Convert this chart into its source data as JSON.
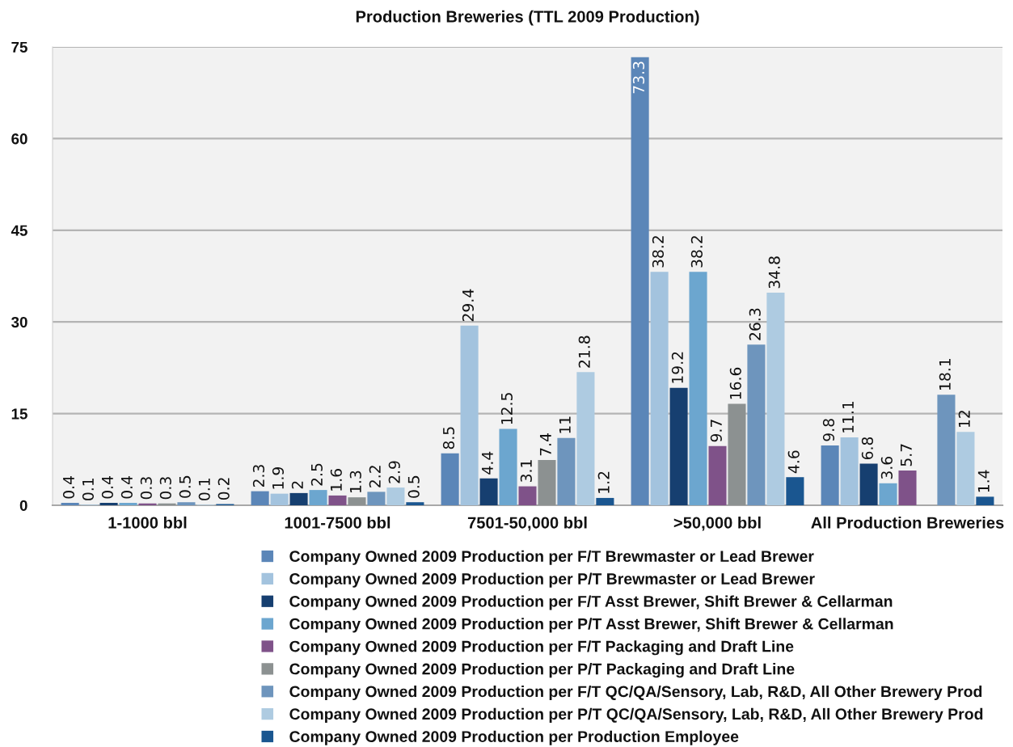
{
  "chart_data": {
    "type": "bar",
    "title": "Production Breweries (TTL 2009 Production)",
    "categories": [
      "1-1000 bbl",
      "1001-7500 bbl",
      "7501-50,000 bbl",
      ">50,000 bbl",
      "All Production Breweries"
    ],
    "series": [
      {
        "name": "Company Owned 2009 Production per F/T Brewmaster or Lead Brewer",
        "color": "#5b86b8",
        "values": [
          0.4,
          2.3,
          8.5,
          73.3,
          9.8
        ]
      },
      {
        "name": "Company Owned 2009 Production per P/T Brewmaster or Lead Brewer",
        "color": "#a3c3de",
        "values": [
          0.1,
          1.9,
          29.4,
          38.2,
          11.1
        ]
      },
      {
        "name": "Company Owned 2009 Production per F/T Asst Brewer, Shift Brewer & Cellarman",
        "color": "#163f70",
        "values": [
          0.4,
          2,
          4.4,
          19.2,
          6.8
        ]
      },
      {
        "name": "Company Owned 2009 Production per P/T Asst Brewer, Shift Brewer & Cellarman",
        "color": "#6ca6cf",
        "values": [
          0.4,
          2.5,
          12.5,
          38.2,
          3.6
        ]
      },
      {
        "name": "Company Owned 2009 Production per F/T Packaging and Draft Line",
        "color": "#7f5289",
        "values": [
          0.3,
          1.6,
          3.1,
          9.7,
          5.7
        ]
      },
      {
        "name": "Company Owned 2009 Production per P/T Packaging and Draft Line",
        "color": "#8c9191",
        "values": [
          0.3,
          1.3,
          7.4,
          16.6,
          null
        ]
      },
      {
        "name": "Company Owned 2009 Production per F/T QC/QA/Sensory, Lab, R&D, All Other Brewery Prod",
        "color": "#6e95bd",
        "values": [
          0.5,
          2.2,
          11,
          26.3,
          18.1
        ]
      },
      {
        "name": "Company Owned 2009 Production per P/T QC/QA/Sensory, Lab, R&D, All Other Brewery Prod",
        "color": "#aecbe1",
        "values": [
          0.1,
          2.9,
          21.8,
          34.8,
          12
        ]
      },
      {
        "name": "Company Owned 2009 Production per Production Employee",
        "color": "#1a5690",
        "values": [
          0.2,
          0.5,
          1.2,
          4.6,
          1.4
        ]
      }
    ],
    "ylim": [
      0,
      75
    ],
    "yticks": [
      0,
      15,
      30,
      45,
      60,
      75
    ],
    "grid": "y",
    "legend": "bottom",
    "data_labels": true
  }
}
